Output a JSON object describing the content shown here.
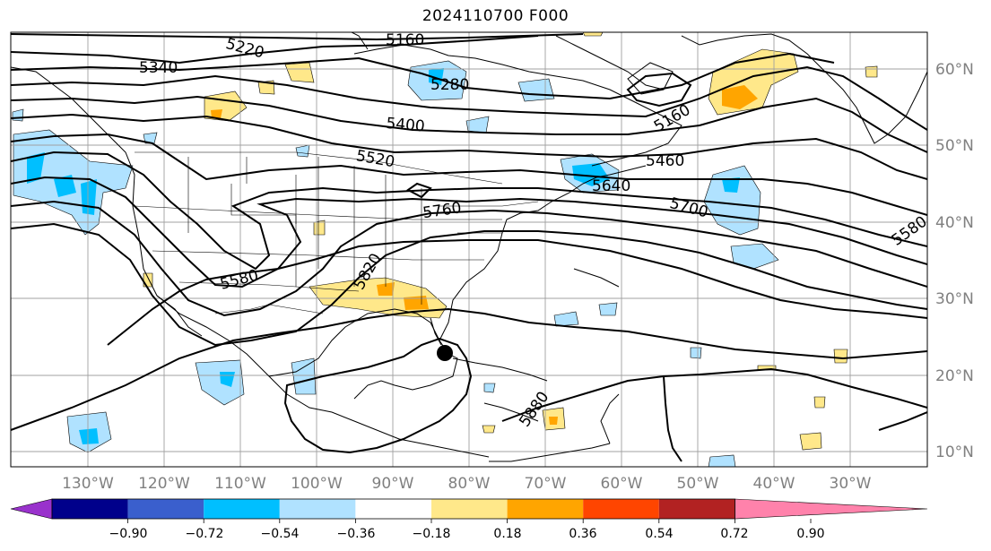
{
  "title": "2024110700 F000",
  "longitude_labels": [
    "130°W",
    "120°W",
    "110°W",
    "100°W",
    "90°W",
    "80°W",
    "70°W",
    "60°W",
    "50°W",
    "40°W",
    "30°W"
  ],
  "latitude_labels": [
    "60°N",
    "50°N",
    "40°N",
    "30°N",
    "20°N",
    "10°N"
  ],
  "contour_labels": [
    "5160",
    "5220",
    "5340",
    "5280",
    "5400",
    "5160",
    "5520",
    "5460",
    "5640",
    "5760",
    "5700",
    "5580",
    "5580",
    "5820",
    "5880"
  ],
  "colorbar": {
    "ticks": [
      "−0.90",
      "−0.72",
      "−0.54",
      "−0.36",
      "−0.18",
      "0.18",
      "0.36",
      "0.54",
      "0.72",
      "0.90"
    ],
    "colors": {
      "under": "#9932CC",
      "bins": [
        "#9B30D0",
        "#00008B",
        "#3A5FCD",
        "#00BFFF",
        "#B0E2FF",
        "#FFFFFF",
        "#FFE88A",
        "#FFA500",
        "#FF4500",
        "#B22222",
        "#FF82AB"
      ],
      "over": "#FF82AB"
    }
  },
  "shading_colors": {
    "light_blue": "#B0E2FF",
    "blue": "#00BFFF",
    "yellow": "#FFE88A",
    "orange": "#FFA500"
  },
  "storm_marker_icon": "black-dot"
}
